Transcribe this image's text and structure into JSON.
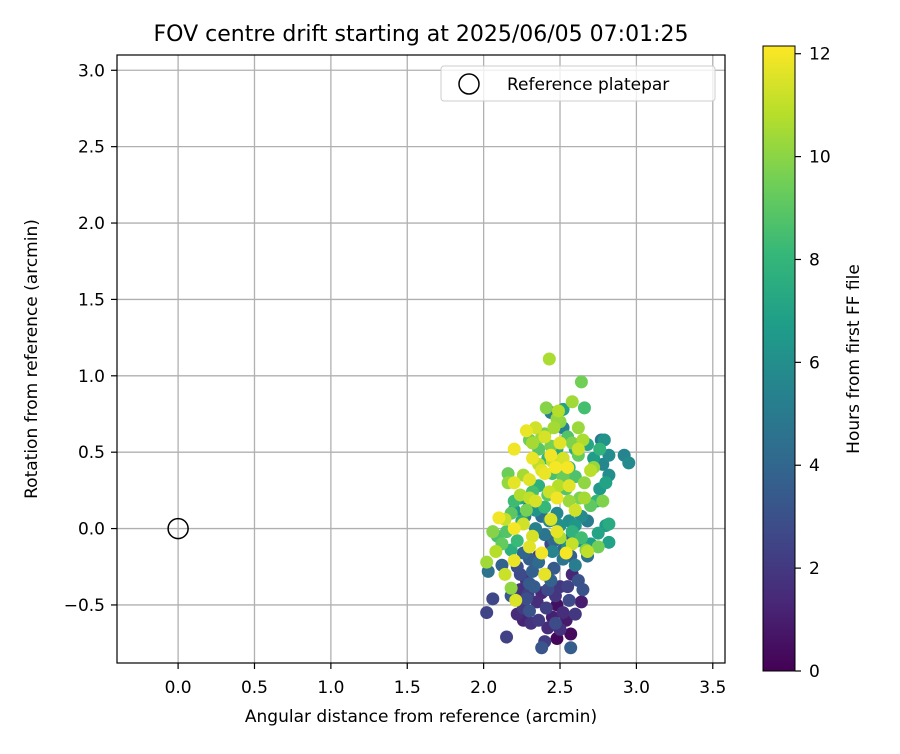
{
  "chart_data": {
    "type": "scatter",
    "title": "FOV centre drift starting at 2025/06/05 07:01:25",
    "xlabel": "Angular distance from reference (arcmin)",
    "ylabel": "Rotation from reference (arcmin)",
    "xlim": [
      -0.4,
      3.58
    ],
    "ylim": [
      -0.88,
      3.1
    ],
    "xticks": [
      "0.0",
      "0.5",
      "1.0",
      "1.5",
      "2.0",
      "2.5",
      "3.0",
      "3.5"
    ],
    "yticks": [
      "−0.5",
      "0.0",
      "0.5",
      "1.0",
      "1.5",
      "2.0",
      "2.5",
      "3.0"
    ],
    "grid": true,
    "legend": {
      "placement": "top-right",
      "entries": [
        "Reference platepar"
      ]
    },
    "reference_point": {
      "x": 0.0,
      "y": 0.0,
      "label": "Reference platepar"
    },
    "colorbar": {
      "label": "Hours from first FF file",
      "range": [
        0,
        12.15
      ],
      "ticks": [
        "0",
        "2",
        "4",
        "6",
        "8",
        "10",
        "12"
      ],
      "colormap": "viridis",
      "colors": [
        "#440154",
        "#482878",
        "#3e4a89",
        "#31688e",
        "#26828e",
        "#1f9e89",
        "#35b779",
        "#6ece58",
        "#b5de2b",
        "#fde725"
      ]
    },
    "series": [
      {
        "points": [
          [
            2.38,
            -0.78,
            3.2
          ],
          [
            2.57,
            -0.78,
            3.6
          ],
          [
            2.48,
            -0.72,
            0.2
          ],
          [
            2.57,
            -0.69,
            0.3
          ],
          [
            2.15,
            -0.71,
            2.4
          ],
          [
            2.02,
            -0.55,
            2.5
          ],
          [
            2.42,
            -0.65,
            1.5
          ],
          [
            2.26,
            -0.6,
            1.2
          ],
          [
            2.31,
            -0.62,
            1.8
          ],
          [
            2.36,
            -0.6,
            2.1
          ],
          [
            2.45,
            -0.58,
            1.1
          ],
          [
            2.48,
            -0.5,
            0.5
          ],
          [
            2.52,
            -0.55,
            1.6
          ],
          [
            2.56,
            -0.47,
            2.7
          ],
          [
            2.64,
            -0.48,
            1.0
          ],
          [
            2.06,
            -0.46,
            2.6
          ],
          [
            2.18,
            -0.44,
            3.3
          ],
          [
            2.24,
            -0.4,
            1.7
          ],
          [
            2.29,
            -0.43,
            2.3
          ],
          [
            2.33,
            -0.38,
            3.5
          ],
          [
            2.38,
            -0.42,
            1.4
          ],
          [
            2.42,
            -0.4,
            2.8
          ],
          [
            2.5,
            -0.38,
            2.0
          ],
          [
            2.58,
            -0.3,
            1.3
          ],
          [
            2.65,
            -0.4,
            3.1
          ],
          [
            2.03,
            -0.28,
            4.6
          ],
          [
            2.12,
            -0.24,
            3.8
          ],
          [
            2.22,
            -0.25,
            2.9
          ],
          [
            2.28,
            -0.34,
            1.9
          ],
          [
            2.32,
            -0.28,
            3.7
          ],
          [
            2.36,
            -0.22,
            4.2
          ],
          [
            2.4,
            -0.3,
            2.5
          ],
          [
            2.46,
            -0.26,
            3.4
          ],
          [
            2.52,
            -0.2,
            4.8
          ],
          [
            2.6,
            -0.24,
            5.2
          ],
          [
            2.68,
            -0.18,
            4.5
          ],
          [
            2.45,
            -0.15,
            5.5
          ],
          [
            2.55,
            -0.12,
            5.9
          ],
          [
            2.62,
            -0.08,
            6.3
          ],
          [
            2.7,
            -0.1,
            6.8
          ],
          [
            2.75,
            -0.03,
            7.1
          ],
          [
            2.8,
            0.02,
            6.6
          ],
          [
            2.82,
            0.03,
            7.4
          ],
          [
            2.82,
            -0.09,
            6.9
          ],
          [
            2.75,
            -0.12,
            9.5
          ],
          [
            2.67,
            -0.14,
            9.8
          ],
          [
            2.64,
            -0.06,
            8.4
          ],
          [
            2.58,
            -0.02,
            7.8
          ],
          [
            2.5,
            0.02,
            6.1
          ],
          [
            2.43,
            0.05,
            5.6
          ],
          [
            2.38,
            0.08,
            4.3
          ],
          [
            2.34,
            0.12,
            6.2
          ],
          [
            2.3,
            0.15,
            5.0
          ],
          [
            2.27,
            0.08,
            4.9
          ],
          [
            2.24,
            0.2,
            7.2
          ],
          [
            2.2,
            0.18,
            8.3
          ],
          [
            2.18,
            0.1,
            9.0
          ],
          [
            2.15,
            -0.02,
            8.8
          ],
          [
            2.12,
            -0.1,
            9.2
          ],
          [
            2.09,
            -0.05,
            8.6
          ],
          [
            2.06,
            -0.02,
            9.9
          ],
          [
            2.02,
            -0.22,
            10.4
          ],
          [
            2.08,
            -0.15,
            10.8
          ],
          [
            2.14,
            -0.3,
            11.2
          ],
          [
            2.18,
            -0.39,
            10.1
          ],
          [
            2.21,
            -0.47,
            11.5
          ],
          [
            2.2,
            -0.21,
            11.8
          ],
          [
            2.3,
            -0.12,
            11.6
          ],
          [
            2.38,
            -0.16,
            11.9
          ],
          [
            2.4,
            -0.3,
            11.7
          ],
          [
            2.32,
            -0.05,
            11.4
          ],
          [
            2.26,
            0.03,
            11.3
          ],
          [
            2.2,
            0.0,
            12.0
          ],
          [
            2.14,
            0.06,
            11.1
          ],
          [
            2.1,
            0.07,
            11.9
          ],
          [
            2.2,
            0.3,
            11.7
          ],
          [
            2.24,
            0.22,
            10.7
          ],
          [
            2.26,
            0.35,
            10.5
          ],
          [
            2.3,
            0.32,
            11.6
          ],
          [
            2.32,
            0.46,
            11.8
          ],
          [
            2.36,
            0.42,
            11.0
          ],
          [
            2.4,
            0.6,
            11.4
          ],
          [
            2.44,
            0.48,
            11.9
          ],
          [
            2.47,
            0.4,
            12.0
          ],
          [
            2.5,
            0.56,
            11.6
          ],
          [
            2.2,
            0.52,
            11.9
          ],
          [
            2.28,
            0.64,
            11.8
          ],
          [
            2.34,
            0.66,
            11.3
          ],
          [
            2.38,
            0.6,
            10.2
          ],
          [
            2.44,
            0.54,
            9.6
          ],
          [
            2.46,
            0.66,
            10.5
          ],
          [
            2.5,
            0.7,
            10.0
          ],
          [
            2.55,
            0.6,
            8.8
          ],
          [
            2.6,
            0.52,
            7.5
          ],
          [
            2.62,
            0.48,
            9.2
          ],
          [
            2.65,
            0.58,
            10.6
          ],
          [
            2.68,
            0.55,
            7.2
          ],
          [
            2.72,
            0.46,
            6.7
          ],
          [
            2.76,
            0.52,
            7.9
          ],
          [
            2.79,
            0.58,
            6.2
          ],
          [
            2.78,
            0.42,
            5.6
          ],
          [
            2.82,
            0.48,
            5.9
          ],
          [
            2.82,
            0.35,
            6.0
          ],
          [
            2.8,
            0.3,
            7.0
          ],
          [
            2.76,
            0.26,
            6.5
          ],
          [
            2.74,
            0.18,
            8.0
          ],
          [
            2.7,
            0.15,
            9.1
          ],
          [
            2.7,
            0.38,
            10.9
          ],
          [
            2.66,
            0.3,
            10.1
          ],
          [
            2.63,
            0.2,
            9.7
          ],
          [
            2.6,
            0.12,
            9.4
          ],
          [
            2.56,
            0.18,
            10.3
          ],
          [
            2.54,
            0.26,
            8.9
          ],
          [
            2.52,
            0.34,
            9.3
          ],
          [
            2.49,
            0.28,
            10.8
          ],
          [
            2.45,
            0.36,
            8.6
          ],
          [
            2.42,
            0.22,
            9.0
          ],
          [
            2.4,
            0.14,
            8.1
          ],
          [
            2.36,
            0.28,
            7.7
          ],
          [
            2.32,
            0.24,
            8.5
          ],
          [
            2.28,
            0.12,
            9.6
          ],
          [
            2.25,
            0.05,
            7.4
          ],
          [
            2.22,
            -0.08,
            8.2
          ],
          [
            2.18,
            -0.14,
            7.6
          ],
          [
            2.16,
            0.36,
            9.4
          ],
          [
            2.16,
            0.3,
            10.2
          ],
          [
            2.2,
            0.12,
            6.4
          ],
          [
            2.34,
            0.0,
            5.3
          ],
          [
            2.4,
            -0.04,
            4.7
          ],
          [
            2.46,
            -0.08,
            4.1
          ],
          [
            2.52,
            -0.14,
            3.9
          ],
          [
            2.48,
            0.1,
            5.7
          ],
          [
            2.56,
            0.05,
            6.0
          ],
          [
            2.6,
            0.02,
            6.4
          ],
          [
            2.64,
            0.08,
            5.8
          ],
          [
            2.68,
            0.05,
            5.1
          ],
          [
            2.58,
            -0.05,
            4.4
          ],
          [
            2.5,
            -0.06,
            3.0
          ],
          [
            2.44,
            -0.1,
            2.6
          ],
          [
            2.36,
            -0.18,
            2.2
          ],
          [
            2.3,
            -0.2,
            3.6
          ],
          [
            2.26,
            -0.16,
            4.0
          ],
          [
            2.24,
            -0.3,
            2.7
          ],
          [
            2.35,
            -0.48,
            1.6
          ],
          [
            2.41,
            -0.52,
            2.3
          ],
          [
            2.47,
            -0.44,
            1.9
          ],
          [
            2.55,
            -0.38,
            2.4
          ],
          [
            2.62,
            -0.34,
            3.0
          ],
          [
            2.57,
            -0.18,
            3.7
          ],
          [
            2.28,
            -0.46,
            2.9
          ],
          [
            2.36,
            0.52,
            9.0
          ],
          [
            2.42,
            0.46,
            8.0
          ],
          [
            2.48,
            0.52,
            7.3
          ],
          [
            2.52,
            0.46,
            6.8
          ],
          [
            2.56,
            0.4,
            7.9
          ],
          [
            2.6,
            0.34,
            8.7
          ],
          [
            2.58,
            0.56,
            9.8
          ],
          [
            2.62,
            0.66,
            10.3
          ],
          [
            2.64,
            0.96,
            9.5
          ],
          [
            2.43,
            1.11,
            10.6
          ],
          [
            2.58,
            0.83,
            10.4
          ],
          [
            2.66,
            0.79,
            8.5
          ],
          [
            2.41,
            0.79,
            9.9
          ],
          [
            2.49,
            0.77,
            10.8
          ],
          [
            2.52,
            0.78,
            7.0
          ],
          [
            2.48,
            0.72,
            10.2
          ],
          [
            2.4,
            0.62,
            9.6
          ],
          [
            2.32,
            0.56,
            10.5
          ],
          [
            2.3,
            0.58,
            9.4
          ],
          [
            2.45,
            0.44,
            11.1
          ],
          [
            2.4,
            0.36,
            11.8
          ],
          [
            2.52,
            0.46,
            11.4
          ],
          [
            2.55,
            0.4,
            12.0
          ],
          [
            2.62,
            0.52,
            11.2
          ],
          [
            2.56,
            0.28,
            11.6
          ],
          [
            2.48,
            0.2,
            11.9
          ],
          [
            2.43,
            0.24,
            11.2
          ],
          [
            2.38,
            0.38,
            11.6
          ],
          [
            2.34,
            0.18,
            11.4
          ],
          [
            2.3,
            0.2,
            11.0
          ],
          [
            2.44,
            0.06,
            11.5
          ],
          [
            2.5,
            -0.06,
            10.6
          ],
          [
            2.58,
            -0.1,
            11.1
          ],
          [
            2.54,
            -0.16,
            12.0
          ],
          [
            2.48,
            -0.02,
            11.7
          ],
          [
            2.6,
            0.12,
            11.3
          ],
          [
            2.66,
            0.2,
            10.5
          ],
          [
            2.68,
            -0.15,
            11.0
          ],
          [
            2.72,
            0.4,
            10.2
          ],
          [
            2.78,
            0.18,
            9.8
          ],
          [
            2.92,
            0.48,
            5.5
          ],
          [
            2.95,
            0.43,
            5.8
          ],
          [
            2.77,
            0.58,
            5.0
          ],
          [
            2.44,
            0.76,
            5.2
          ],
          [
            2.52,
            0.66,
            5.4
          ],
          [
            2.4,
            -0.74,
            2.2
          ],
          [
            2.47,
            -0.62,
            2.8
          ],
          [
            2.5,
            -0.66,
            1.7
          ],
          [
            2.54,
            -0.6,
            0.9
          ],
          [
            2.6,
            -0.56,
            2.0
          ],
          [
            2.3,
            -0.54,
            3.1
          ],
          [
            2.26,
            -0.52,
            2.1
          ],
          [
            2.22,
            -0.56,
            1.5
          ],
          [
            2.3,
            -0.36,
            3.4
          ],
          [
            2.44,
            -0.34,
            3.8
          ]
        ]
      }
    ]
  }
}
